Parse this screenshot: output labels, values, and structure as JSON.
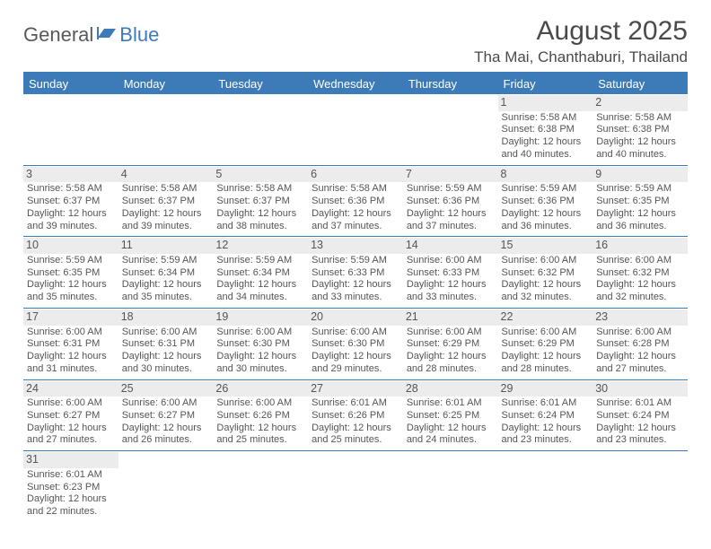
{
  "logo": {
    "part1": "General",
    "part2": "Blue"
  },
  "title": "August 2025",
  "location": "Tha Mai, Chanthaburi, Thailand",
  "style": {
    "header_bg": "#3d7bb8",
    "header_fg": "#ffffff",
    "cell_border": "#3d7bb8",
    "daynum_bg": "#ececec",
    "text_color": "#555555",
    "title_color": "#4a4a4a",
    "logo_gray": "#595959",
    "logo_blue": "#3d7bb8",
    "page_bg": "#ffffff",
    "title_fontsize": 30,
    "location_fontsize": 17,
    "header_fontsize": 13,
    "cell_fontsize": 11
  },
  "weekdays": [
    "Sunday",
    "Monday",
    "Tuesday",
    "Wednesday",
    "Thursday",
    "Friday",
    "Saturday"
  ],
  "first_weekday_index": 5,
  "days": [
    {
      "n": 1,
      "sunrise": "5:58 AM",
      "sunset": "6:38 PM",
      "daylight": "12 hours and 40 minutes."
    },
    {
      "n": 2,
      "sunrise": "5:58 AM",
      "sunset": "6:38 PM",
      "daylight": "12 hours and 40 minutes."
    },
    {
      "n": 3,
      "sunrise": "5:58 AM",
      "sunset": "6:37 PM",
      "daylight": "12 hours and 39 minutes."
    },
    {
      "n": 4,
      "sunrise": "5:58 AM",
      "sunset": "6:37 PM",
      "daylight": "12 hours and 39 minutes."
    },
    {
      "n": 5,
      "sunrise": "5:58 AM",
      "sunset": "6:37 PM",
      "daylight": "12 hours and 38 minutes."
    },
    {
      "n": 6,
      "sunrise": "5:58 AM",
      "sunset": "6:36 PM",
      "daylight": "12 hours and 37 minutes."
    },
    {
      "n": 7,
      "sunrise": "5:59 AM",
      "sunset": "6:36 PM",
      "daylight": "12 hours and 37 minutes."
    },
    {
      "n": 8,
      "sunrise": "5:59 AM",
      "sunset": "6:36 PM",
      "daylight": "12 hours and 36 minutes."
    },
    {
      "n": 9,
      "sunrise": "5:59 AM",
      "sunset": "6:35 PM",
      "daylight": "12 hours and 36 minutes."
    },
    {
      "n": 10,
      "sunrise": "5:59 AM",
      "sunset": "6:35 PM",
      "daylight": "12 hours and 35 minutes."
    },
    {
      "n": 11,
      "sunrise": "5:59 AM",
      "sunset": "6:34 PM",
      "daylight": "12 hours and 35 minutes."
    },
    {
      "n": 12,
      "sunrise": "5:59 AM",
      "sunset": "6:34 PM",
      "daylight": "12 hours and 34 minutes."
    },
    {
      "n": 13,
      "sunrise": "5:59 AM",
      "sunset": "6:33 PM",
      "daylight": "12 hours and 33 minutes."
    },
    {
      "n": 14,
      "sunrise": "6:00 AM",
      "sunset": "6:33 PM",
      "daylight": "12 hours and 33 minutes."
    },
    {
      "n": 15,
      "sunrise": "6:00 AM",
      "sunset": "6:32 PM",
      "daylight": "12 hours and 32 minutes."
    },
    {
      "n": 16,
      "sunrise": "6:00 AM",
      "sunset": "6:32 PM",
      "daylight": "12 hours and 32 minutes."
    },
    {
      "n": 17,
      "sunrise": "6:00 AM",
      "sunset": "6:31 PM",
      "daylight": "12 hours and 31 minutes."
    },
    {
      "n": 18,
      "sunrise": "6:00 AM",
      "sunset": "6:31 PM",
      "daylight": "12 hours and 30 minutes."
    },
    {
      "n": 19,
      "sunrise": "6:00 AM",
      "sunset": "6:30 PM",
      "daylight": "12 hours and 30 minutes."
    },
    {
      "n": 20,
      "sunrise": "6:00 AM",
      "sunset": "6:30 PM",
      "daylight": "12 hours and 29 minutes."
    },
    {
      "n": 21,
      "sunrise": "6:00 AM",
      "sunset": "6:29 PM",
      "daylight": "12 hours and 28 minutes."
    },
    {
      "n": 22,
      "sunrise": "6:00 AM",
      "sunset": "6:29 PM",
      "daylight": "12 hours and 28 minutes."
    },
    {
      "n": 23,
      "sunrise": "6:00 AM",
      "sunset": "6:28 PM",
      "daylight": "12 hours and 27 minutes."
    },
    {
      "n": 24,
      "sunrise": "6:00 AM",
      "sunset": "6:27 PM",
      "daylight": "12 hours and 27 minutes."
    },
    {
      "n": 25,
      "sunrise": "6:00 AM",
      "sunset": "6:27 PM",
      "daylight": "12 hours and 26 minutes."
    },
    {
      "n": 26,
      "sunrise": "6:00 AM",
      "sunset": "6:26 PM",
      "daylight": "12 hours and 25 minutes."
    },
    {
      "n": 27,
      "sunrise": "6:01 AM",
      "sunset": "6:26 PM",
      "daylight": "12 hours and 25 minutes."
    },
    {
      "n": 28,
      "sunrise": "6:01 AM",
      "sunset": "6:25 PM",
      "daylight": "12 hours and 24 minutes."
    },
    {
      "n": 29,
      "sunrise": "6:01 AM",
      "sunset": "6:24 PM",
      "daylight": "12 hours and 23 minutes."
    },
    {
      "n": 30,
      "sunrise": "6:01 AM",
      "sunset": "6:24 PM",
      "daylight": "12 hours and 23 minutes."
    },
    {
      "n": 31,
      "sunrise": "6:01 AM",
      "sunset": "6:23 PM",
      "daylight": "12 hours and 22 minutes."
    }
  ],
  "labels": {
    "sunrise": "Sunrise:",
    "sunset": "Sunset:",
    "daylight": "Daylight:"
  }
}
